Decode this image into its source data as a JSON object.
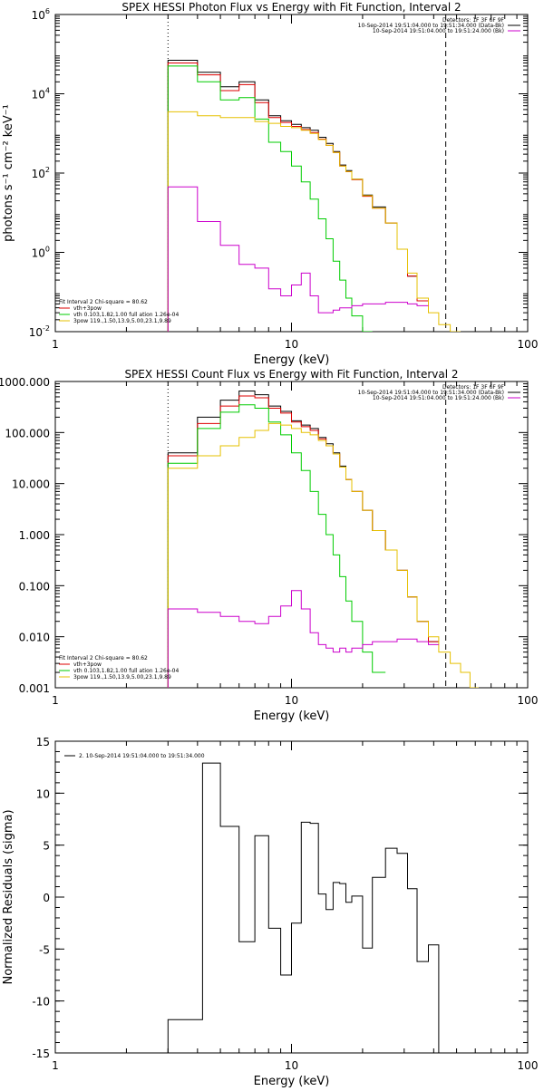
{
  "chart_data": [
    {
      "type": "line",
      "title": "SPEX HESSI Photon Flux vs Energy with Fit Function, Interval 2",
      "xlabel": "Energy (keV)",
      "ylabel": "photons s⁻¹ cm⁻² keV⁻¹",
      "xscale": "log",
      "yscale": "log",
      "xlim": [
        1,
        100
      ],
      "ylim": [
        0.01,
        1000000
      ],
      "xticks": [
        {
          "v": 1,
          "label": "1"
        },
        {
          "v": 10,
          "label": "10"
        },
        {
          "v": 100,
          "label": "100"
        }
      ],
      "yticks": [
        {
          "v": 0.01,
          "base": "10",
          "exp": "-2"
        },
        {
          "v": 1,
          "base": "10",
          "exp": "0"
        },
        {
          "v": 100,
          "base": "10",
          "exp": "2"
        },
        {
          "v": 10000,
          "base": "10",
          "exp": "4"
        },
        {
          "v": 1000000,
          "base": "10",
          "exp": "6"
        }
      ],
      "vlines": [
        {
          "x": 3,
          "style": "dotted"
        },
        {
          "x": 45,
          "style": "dashed"
        }
      ],
      "legend_top_right": [
        {
          "text": "Detectors: 1F 3F 6F 9F",
          "color": ""
        },
        {
          "text": "10-Sep-2014 19:51:04.000 to 19:51:34.000 (Data-Bk)",
          "color": "#000000"
        },
        {
          "text": "10-Sep-2014 19:51:04.000 to 19:51:24.000 (Bk)",
          "color": "#cc00cc"
        }
      ],
      "legend_bottom_left": [
        {
          "text": "Fit Interval 2   Chi-square = 80.62",
          "color": ""
        },
        {
          "text": "vth+3pow",
          "color": "#dd0000"
        },
        {
          "text": "vth 0.103,1.82,1.00  full ation 1.26e-04",
          "color": "#00cc00"
        },
        {
          "text": "3pow 119.,1.50,13.9,5.00,23.1,9.89",
          "color": "#e6c000"
        }
      ],
      "edges": [
        3,
        4,
        5,
        6,
        7,
        8,
        9,
        10,
        11,
        12,
        13,
        14,
        15,
        16,
        17,
        18,
        20,
        22,
        25,
        28,
        31,
        34,
        38,
        42,
        47,
        52
      ],
      "series": [
        {
          "color": "#000000",
          "values": [
            70000,
            35000,
            15000,
            20000,
            7000,
            2800,
            2100,
            1700,
            1400,
            1200,
            800,
            560,
            350,
            160,
            115,
            70,
            28,
            14,
            5.5,
            1.2,
            0.25,
            0.06,
            null,
            null,
            null
          ]
        },
        {
          "color": "#dd0000",
          "values": [
            60000,
            30000,
            12000,
            17000,
            6000,
            2500,
            1900,
            1500,
            1250,
            1050,
            720,
            500,
            330,
            150,
            108,
            68,
            26,
            13,
            5.5,
            1.2,
            0.25,
            0.06,
            null,
            null,
            null
          ]
        },
        {
          "color": "#00cc00",
          "values": [
            50000,
            20000,
            7000,
            8000,
            2300,
            600,
            350,
            150,
            60,
            22,
            7,
            2.2,
            0.6,
            0.2,
            0.07,
            0.025,
            0.01,
            null,
            null,
            null,
            null,
            null,
            null,
            null,
            null
          ]
        },
        {
          "color": "#e6c000",
          "values": [
            3500,
            2800,
            2500,
            2500,
            2000,
            1800,
            1500,
            1400,
            1200,
            1000,
            700,
            500,
            330,
            150,
            110,
            70,
            27,
            13,
            5.5,
            1.2,
            0.3,
            0.07,
            0.03,
            0.015,
            0.01
          ]
        },
        {
          "color": "#cc00cc",
          "values": [
            45,
            6,
            1.5,
            0.5,
            0.4,
            0.12,
            0.08,
            0.15,
            0.3,
            0.08,
            0.03,
            0.03,
            0.035,
            0.04,
            0.04,
            0.045,
            0.05,
            0.05,
            0.055,
            0.055,
            0.05,
            0.045,
            null,
            null,
            null
          ]
        }
      ]
    },
    {
      "type": "line",
      "title": "SPEX HESSI Count Flux vs Energy with Fit Function, Interval 2",
      "xlabel": "Energy (keV)",
      "ylabel": "",
      "xscale": "log",
      "yscale": "log",
      "xlim": [
        1,
        100
      ],
      "ylim": [
        0.001,
        1000
      ],
      "xticks": [
        {
          "v": 1,
          "label": "1"
        },
        {
          "v": 10,
          "label": "10"
        },
        {
          "v": 100,
          "label": "100"
        }
      ],
      "yticks": [
        {
          "v": 0.001,
          "label": "0.001"
        },
        {
          "v": 0.01,
          "label": "0.010"
        },
        {
          "v": 0.1,
          "label": "0.100"
        },
        {
          "v": 1,
          "label": "1.000"
        },
        {
          "v": 10,
          "label": "10.000"
        },
        {
          "v": 100,
          "label": "100.000"
        },
        {
          "v": 1000,
          "label": "1000.000"
        }
      ],
      "vlines": [
        {
          "x": 3,
          "style": "dotted"
        },
        {
          "x": 45,
          "style": "dashed"
        }
      ],
      "legend_top_right": [
        {
          "text": "Detectors: 1F 3F 6F 9F",
          "color": ""
        },
        {
          "text": "10-Sep-2014 19:51:04.000 to 19:51:34.000 (Data-Bk)",
          "color": "#000000"
        },
        {
          "text": "10-Sep-2014 19:51:04.000 to 19:51:24.000 (Bk)",
          "color": "#cc00cc"
        }
      ],
      "legend_bottom_left": [
        {
          "text": "Fit Interval 2   Chi-square = 80.62",
          "color": ""
        },
        {
          "text": "vth+3pow",
          "color": "#dd0000"
        },
        {
          "text": "vth 0.103,1.82,1.00  full ation 1.26e-04",
          "color": "#00cc00"
        },
        {
          "text": "3pow 119.,1.50,13.9,5.00,23.1,9.89",
          "color": "#e6c000"
        }
      ],
      "edges": [
        3,
        4,
        5,
        6,
        7,
        8,
        9,
        10,
        11,
        12,
        13,
        14,
        15,
        16,
        17,
        18,
        20,
        22,
        25,
        28,
        31,
        34,
        38,
        42,
        47,
        52,
        57,
        62
      ],
      "series": [
        {
          "color": "#000000",
          "values": [
            40,
            200,
            430,
            650,
            550,
            330,
            260,
            170,
            140,
            120,
            80,
            60,
            40,
            22,
            12,
            7,
            3,
            1.2,
            0.5,
            0.2,
            0.06,
            0.02,
            0.008,
            null,
            null,
            null,
            null
          ]
        },
        {
          "color": "#dd0000",
          "values": [
            35,
            150,
            330,
            520,
            480,
            300,
            240,
            160,
            130,
            110,
            75,
            55,
            38,
            21,
            12,
            7,
            3,
            1.2,
            0.5,
            0.2,
            0.06,
            0.02,
            0.008,
            null,
            null,
            null,
            null
          ]
        },
        {
          "color": "#00cc00",
          "values": [
            25,
            120,
            250,
            350,
            300,
            160,
            90,
            40,
            18,
            7,
            2.5,
            1,
            0.4,
            0.15,
            0.05,
            0.02,
            0.005,
            0.002,
            null,
            null,
            null,
            null,
            null,
            null,
            null,
            null,
            null
          ]
        },
        {
          "color": "#e6c000",
          "values": [
            20,
            35,
            55,
            80,
            110,
            150,
            140,
            120,
            100,
            90,
            70,
            55,
            38,
            21,
            12,
            7,
            3,
            1.2,
            0.5,
            0.2,
            0.06,
            0.02,
            0.01,
            0.005,
            0.003,
            0.002,
            0.001
          ]
        },
        {
          "color": "#cc00cc",
          "values": [
            0.035,
            0.03,
            0.025,
            0.02,
            0.018,
            0.025,
            0.04,
            0.08,
            0.035,
            0.012,
            0.007,
            0.006,
            0.005,
            0.006,
            0.005,
            0.006,
            0.007,
            0.008,
            0.008,
            0.009,
            0.009,
            0.008,
            0.007,
            null,
            null,
            null,
            null
          ]
        }
      ]
    },
    {
      "type": "line",
      "title": "",
      "xlabel": "Energy (keV)",
      "ylabel": "Normalized Residuals (sigma)",
      "xscale": "log",
      "yscale": "linear",
      "xlim": [
        1,
        100
      ],
      "ylim": [
        -15,
        15
      ],
      "xticks": [
        {
          "v": 1,
          "label": "1"
        },
        {
          "v": 10,
          "label": "10"
        },
        {
          "v": 100,
          "label": "100"
        }
      ],
      "yticks": [
        {
          "v": -15,
          "label": "-15"
        },
        {
          "v": -10,
          "label": "-10"
        },
        {
          "v": -5,
          "label": "-5"
        },
        {
          "v": 0,
          "label": "0"
        },
        {
          "v": 5,
          "label": "5"
        },
        {
          "v": 10,
          "label": "10"
        },
        {
          "v": 15,
          "label": "15"
        }
      ],
      "legend_top_left": [
        {
          "text": "2. 10-Sep-2014 19:51:04.000 to 19:51:34.000",
          "color": "#000000"
        }
      ],
      "edges": [
        3,
        4.2,
        5,
        6,
        7,
        8,
        9,
        10,
        11,
        12,
        13,
        14,
        15,
        16,
        17,
        18,
        20,
        22,
        25,
        28,
        31,
        34,
        38,
        42,
        45
      ],
      "series": [
        {
          "color": "#000000",
          "values": [
            -11.8,
            12.9,
            6.8,
            -4.3,
            5.9,
            -3,
            -7.5,
            -2.5,
            7.2,
            7.1,
            0.3,
            -1.2,
            1.4,
            1.3,
            -0.5,
            0.1,
            -4.9,
            1.9,
            4.7,
            4.2,
            0.8,
            -6.2,
            -4.6,
            -15
          ]
        }
      ]
    }
  ]
}
